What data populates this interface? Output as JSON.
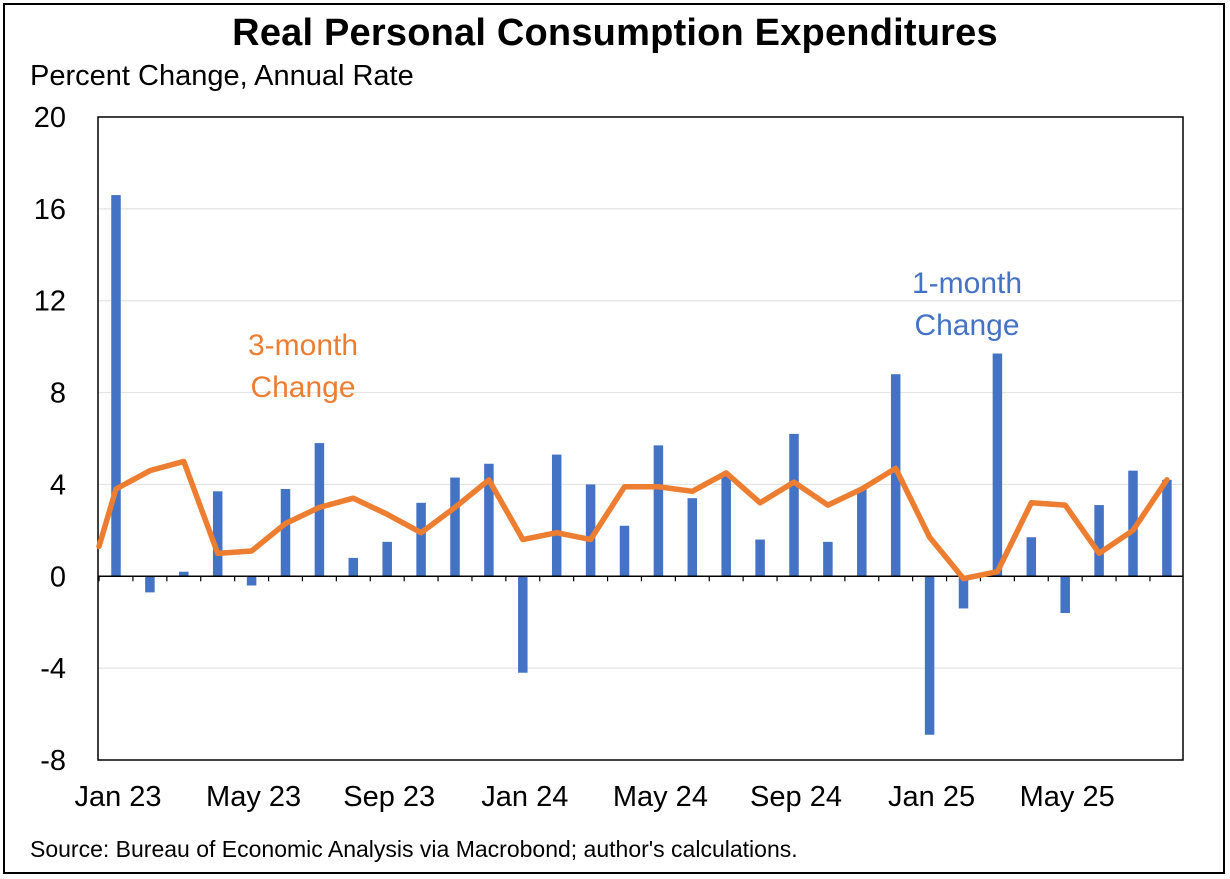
{
  "chart_data": {
    "type": "bar",
    "title": "Real Personal Consumption Expenditures",
    "subtitle": "Percent Change, Annual Rate",
    "source": "Source: Bureau of Economic Analysis via Macrobond; author's calculations.",
    "xlabel": "",
    "ylabel": "",
    "ylim": [
      -8,
      20
    ],
    "y_ticks": [
      20,
      16,
      12,
      8,
      4,
      0,
      -4,
      -8
    ],
    "x_tick_labels": [
      {
        "label": "Jan 23",
        "index": 0
      },
      {
        "label": "May 23",
        "index": 4
      },
      {
        "label": "Sep 23",
        "index": 8
      },
      {
        "label": "Jan 24",
        "index": 12
      },
      {
        "label": "May 24",
        "index": 16
      },
      {
        "label": "Sep 24",
        "index": 20
      },
      {
        "label": "Jan 25",
        "index": 24
      },
      {
        "label": "May 25",
        "index": 28
      }
    ],
    "categories": [
      "Jan 23",
      "Feb 23",
      "Mar 23",
      "Apr 23",
      "May 23",
      "Jun 23",
      "Jul 23",
      "Aug 23",
      "Sep 23",
      "Oct 23",
      "Nov 23",
      "Dec 23",
      "Jan 24",
      "Feb 24",
      "Mar 24",
      "Apr 24",
      "May 24",
      "Jun 24",
      "Jul 24",
      "Aug 24",
      "Sep 24",
      "Oct 24",
      "Nov 24",
      "Dec 24",
      "Jan 25",
      "Feb 25",
      "Mar 25",
      "Apr 25",
      "May 25",
      "Jun 25",
      "Jul 25",
      "Aug 25"
    ],
    "grid": true,
    "series": [
      {
        "name": "1-month Change",
        "type": "bar",
        "color": "#4472C4",
        "values": [
          16.6,
          -0.7,
          0.2,
          3.7,
          -0.4,
          3.8,
          5.8,
          0.8,
          1.5,
          3.2,
          4.3,
          4.9,
          -4.2,
          5.3,
          4.0,
          2.2,
          5.7,
          3.4,
          4.4,
          1.6,
          6.2,
          1.5,
          3.8,
          8.8,
          -6.9,
          -1.4,
          9.7,
          1.7,
          -1.6,
          3.1,
          4.6,
          4.2
        ]
      },
      {
        "name": "3-month Change",
        "type": "line",
        "color": "#ED7D31",
        "values": [
          3.8,
          4.6,
          5.0,
          1.0,
          1.1,
          2.3,
          3.0,
          3.4,
          2.7,
          1.9,
          3.0,
          4.2,
          1.6,
          1.9,
          1.6,
          3.9,
          3.9,
          3.7,
          4.5,
          3.2,
          4.1,
          3.1,
          3.8,
          4.7,
          1.7,
          -0.1,
          0.2,
          3.2,
          3.1,
          1.0,
          2.0,
          4.2
        ],
        "start_value": 1.3
      }
    ],
    "annotations": {
      "three_month": {
        "lines": [
          "3-month",
          "Change"
        ],
        "color": "#ED7D31"
      },
      "one_month": {
        "lines": [
          "1-month",
          "Change"
        ],
        "color": "#4472C4"
      }
    }
  }
}
